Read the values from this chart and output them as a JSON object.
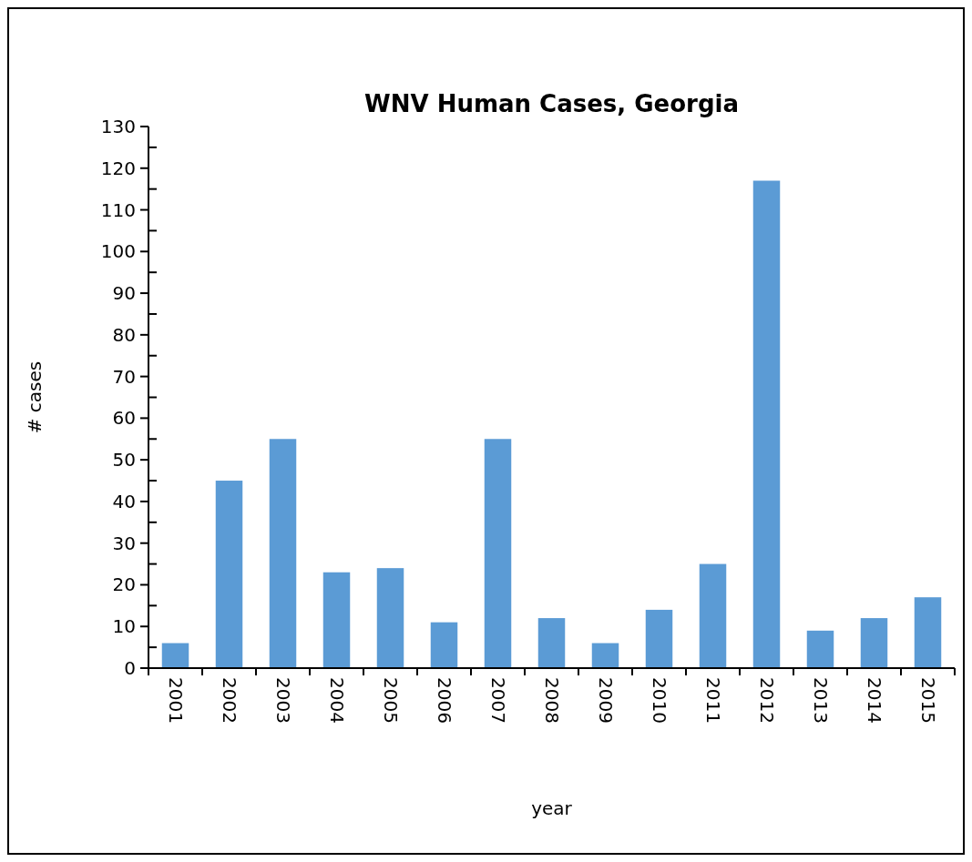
{
  "chart_data": {
    "type": "bar",
    "title": "WNV Human Cases, Georgia",
    "xlabel": "year",
    "ylabel": "# cases",
    "categories": [
      "2001",
      "2002",
      "2003",
      "2004",
      "2005",
      "2006",
      "2007",
      "2008",
      "2009",
      "2010",
      "2011",
      "2012",
      "2013",
      "2014",
      "2015"
    ],
    "values": [
      6,
      45,
      55,
      23,
      24,
      11,
      55,
      12,
      6,
      14,
      25,
      117,
      9,
      12,
      17
    ],
    "color": "#5b9bd5",
    "ylim": [
      0,
      130
    ],
    "yticks": [
      0,
      {
        "value": 5,
        "label": null
      },
      10,
      {
        "value": 15,
        "label": null
      },
      20,
      {
        "value": 25,
        "label": null
      },
      30,
      {
        "value": 35,
        "label": null
      },
      40,
      {
        "value": 45,
        "label": null
      },
      50,
      {
        "value": 55,
        "label": null
      },
      60,
      {
        "value": 65,
        "label": null
      },
      70,
      {
        "value": 75,
        "label": null
      },
      80,
      {
        "value": 85,
        "label": null
      },
      90,
      {
        "value": 95,
        "label": null
      },
      100,
      {
        "value": 105,
        "label": null
      },
      110,
      {
        "value": 115,
        "label": null
      },
      120,
      {
        "value": 125,
        "label": null
      },
      130
    ],
    "grid": false
  }
}
